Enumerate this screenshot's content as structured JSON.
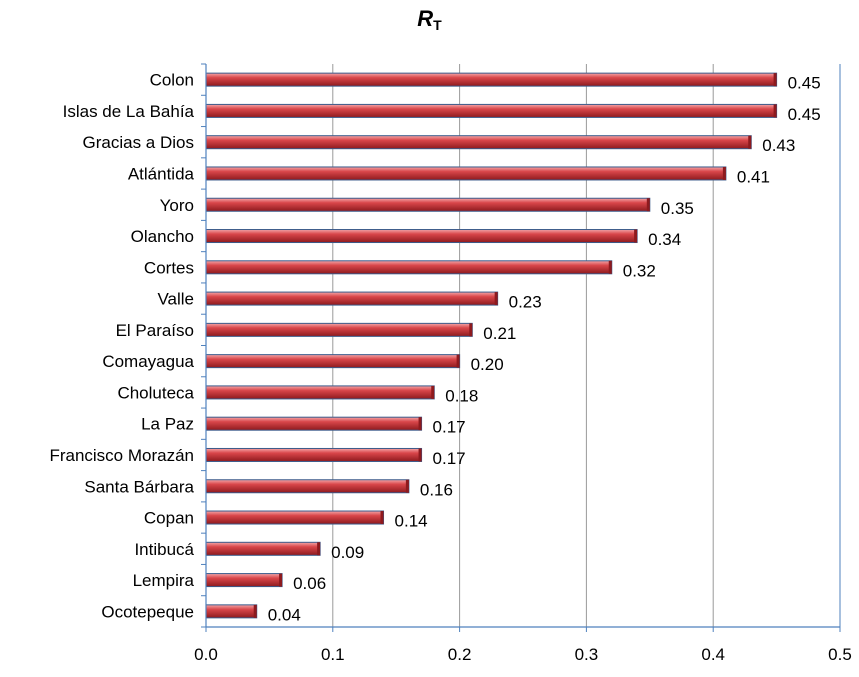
{
  "chart_data": {
    "type": "bar",
    "orientation": "horizontal",
    "title_main": "R",
    "title_subscript": "T",
    "categories": [
      "Colon",
      "Islas de La Bahía",
      "Gracias a Dios",
      "Atlántida",
      "Yoro",
      "Olancho",
      "Cortes",
      "Valle",
      "El Paraíso",
      "Comayagua",
      "Choluteca",
      "La Paz",
      "Francisco Morazán",
      "Santa Bárbara",
      "Copan",
      "Intibucá",
      "Lempira",
      "Ocotepeque"
    ],
    "values": [
      0.45,
      0.45,
      0.43,
      0.41,
      0.35,
      0.34,
      0.32,
      0.23,
      0.21,
      0.2,
      0.18,
      0.17,
      0.17,
      0.16,
      0.14,
      0.09,
      0.06,
      0.04
    ],
    "value_labels": [
      "0.45",
      "0.45",
      "0.43",
      "0.41",
      "0.35",
      "0.34",
      "0.32",
      "0.23",
      "0.21",
      "0.20",
      "0.18",
      "0.17",
      "0.17",
      "0.16",
      "0.14",
      "0.09",
      "0.06",
      "0.04"
    ],
    "xlim": [
      0,
      0.5
    ],
    "x_ticks": [
      0.0,
      0.1,
      0.2,
      0.3,
      0.4,
      0.5
    ],
    "x_tick_labels": [
      "0.0",
      "0.1",
      "0.2",
      "0.3",
      "0.4",
      "0.5"
    ],
    "xlabel": "",
    "ylabel": "",
    "grid": true,
    "legend": false,
    "colors": {
      "bar": "#d9464a",
      "bar_light": "#f4a6a8",
      "bar_dark": "#8e1a1e",
      "bar_outline": "#3b5a8a",
      "axis": "#4f81bd",
      "grid": "#9a9a9a"
    }
  }
}
